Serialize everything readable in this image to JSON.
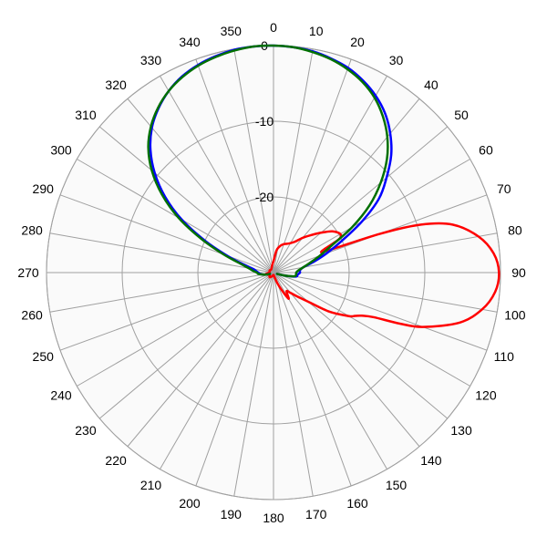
{
  "chart_data": {
    "type": "polar-line",
    "angle_direction": "clockwise",
    "zero_angle_position": "top",
    "angle_tick_labels": [
      "0",
      "10",
      "20",
      "30",
      "40",
      "50",
      "60",
      "70",
      "80",
      "90",
      "100",
      "110",
      "120",
      "130",
      "140",
      "150",
      "160",
      "170",
      "180",
      "190",
      "200",
      "210",
      "220",
      "230",
      "240",
      "250",
      "260",
      "270",
      "280",
      "290",
      "300",
      "310",
      "320",
      "330",
      "340",
      "350"
    ],
    "radial_range": [
      -30,
      0
    ],
    "radial_ticks": [
      0,
      -10,
      -20
    ],
    "radial_tick_labels": [
      "0",
      "-10",
      "-20"
    ],
    "grid": true,
    "background_color": "#fafafa",
    "grid_color": "#a0a0a0",
    "series": [
      {
        "color": "#ff0000",
        "angles": [
          0,
          8,
          15,
          20,
          25,
          30,
          35,
          40,
          45,
          50,
          55,
          60,
          63,
          66,
          68,
          70,
          72,
          75,
          80,
          85,
          90,
          95,
          100,
          105,
          110,
          112,
          114,
          116,
          118,
          120,
          125,
          130,
          135,
          140,
          145,
          150,
          155,
          160,
          170,
          180,
          200,
          220,
          240,
          250,
          260,
          270,
          280,
          300,
          320,
          340,
          350,
          360
        ],
        "values": [
          -28.5,
          -27,
          -26.3,
          -26,
          -25.8,
          -25.5,
          -25,
          -24,
          -23,
          -21.8,
          -20.5,
          -19.8,
          -20.3,
          -23,
          -22,
          -15,
          -9.5,
          -5.5,
          -2.5,
          -0.8,
          -0.2,
          -0.6,
          -2,
          -4.5,
          -9,
          -12,
          -15.5,
          -17,
          -17.8,
          -18.5,
          -21,
          -24,
          -25.5,
          -26.5,
          -27,
          -26,
          -27.5,
          -28.5,
          -29.5,
          -29.7,
          -29.5,
          -29.2,
          -29.4,
          -29.2,
          -29,
          -29.4,
          -29.5,
          -29.4,
          -29.5,
          -29.3,
          -29,
          -28.5
        ]
      },
      {
        "color": "#0000ff",
        "angles": [
          -110,
          -105,
          -100,
          -95,
          -90,
          -85,
          -80,
          -75,
          -70,
          -65,
          -60,
          -55,
          -50,
          -45,
          -40,
          -35,
          -30,
          -25,
          -20,
          -15,
          -10,
          -5,
          0,
          5,
          10,
          15,
          20,
          25,
          30,
          35,
          40,
          45,
          50,
          55,
          60,
          65,
          70,
          75,
          80,
          85,
          90,
          95,
          100,
          105,
          110
        ],
        "values": [
          -29.5,
          -29,
          -28.5,
          -28.2,
          -28,
          -27.7,
          -27.3,
          -26,
          -23.5,
          -20,
          -16,
          -12.5,
          -9.5,
          -7,
          -5,
          -3.5,
          -2.3,
          -1.4,
          -0.8,
          -0.4,
          -0.1,
          0,
          0,
          -0.1,
          -0.3,
          -0.7,
          -1.2,
          -2,
          -3,
          -4.3,
          -6,
          -8,
          -10.5,
          -13,
          -16.5,
          -20,
          -22.5,
          -24.5,
          -26,
          -26.5,
          -26.5,
          -26.8,
          -27,
          -28.5,
          -29.5
        ]
      },
      {
        "color": "#007000",
        "angles": [
          -110,
          -105,
          -100,
          -95,
          -90,
          -85,
          -80,
          -75,
          -70,
          -65,
          -60,
          -55,
          -50,
          -45,
          -40,
          -35,
          -30,
          -25,
          -20,
          -15,
          -10,
          -5,
          0,
          5,
          10,
          15,
          20,
          25,
          30,
          35,
          40,
          45,
          50,
          55,
          60,
          65,
          70,
          75,
          80,
          85,
          90,
          95,
          100,
          105,
          110
        ],
        "values": [
          -29.5,
          -29,
          -28.5,
          -28,
          -27.8,
          -27.3,
          -26.7,
          -25.5,
          -23,
          -19.5,
          -15.5,
          -12,
          -9,
          -6.6,
          -4.8,
          -3.4,
          -2.3,
          -1.5,
          -0.9,
          -0.5,
          -0.2,
          0,
          0,
          -0.1,
          -0.4,
          -0.8,
          -1.4,
          -2.2,
          -3.3,
          -4.8,
          -6.6,
          -8.8,
          -11.5,
          -14.5,
          -18,
          -21.5,
          -23.5,
          -25,
          -26,
          -26.7,
          -27,
          -27,
          -27.2,
          -28.5,
          -29.5
        ]
      }
    ]
  }
}
